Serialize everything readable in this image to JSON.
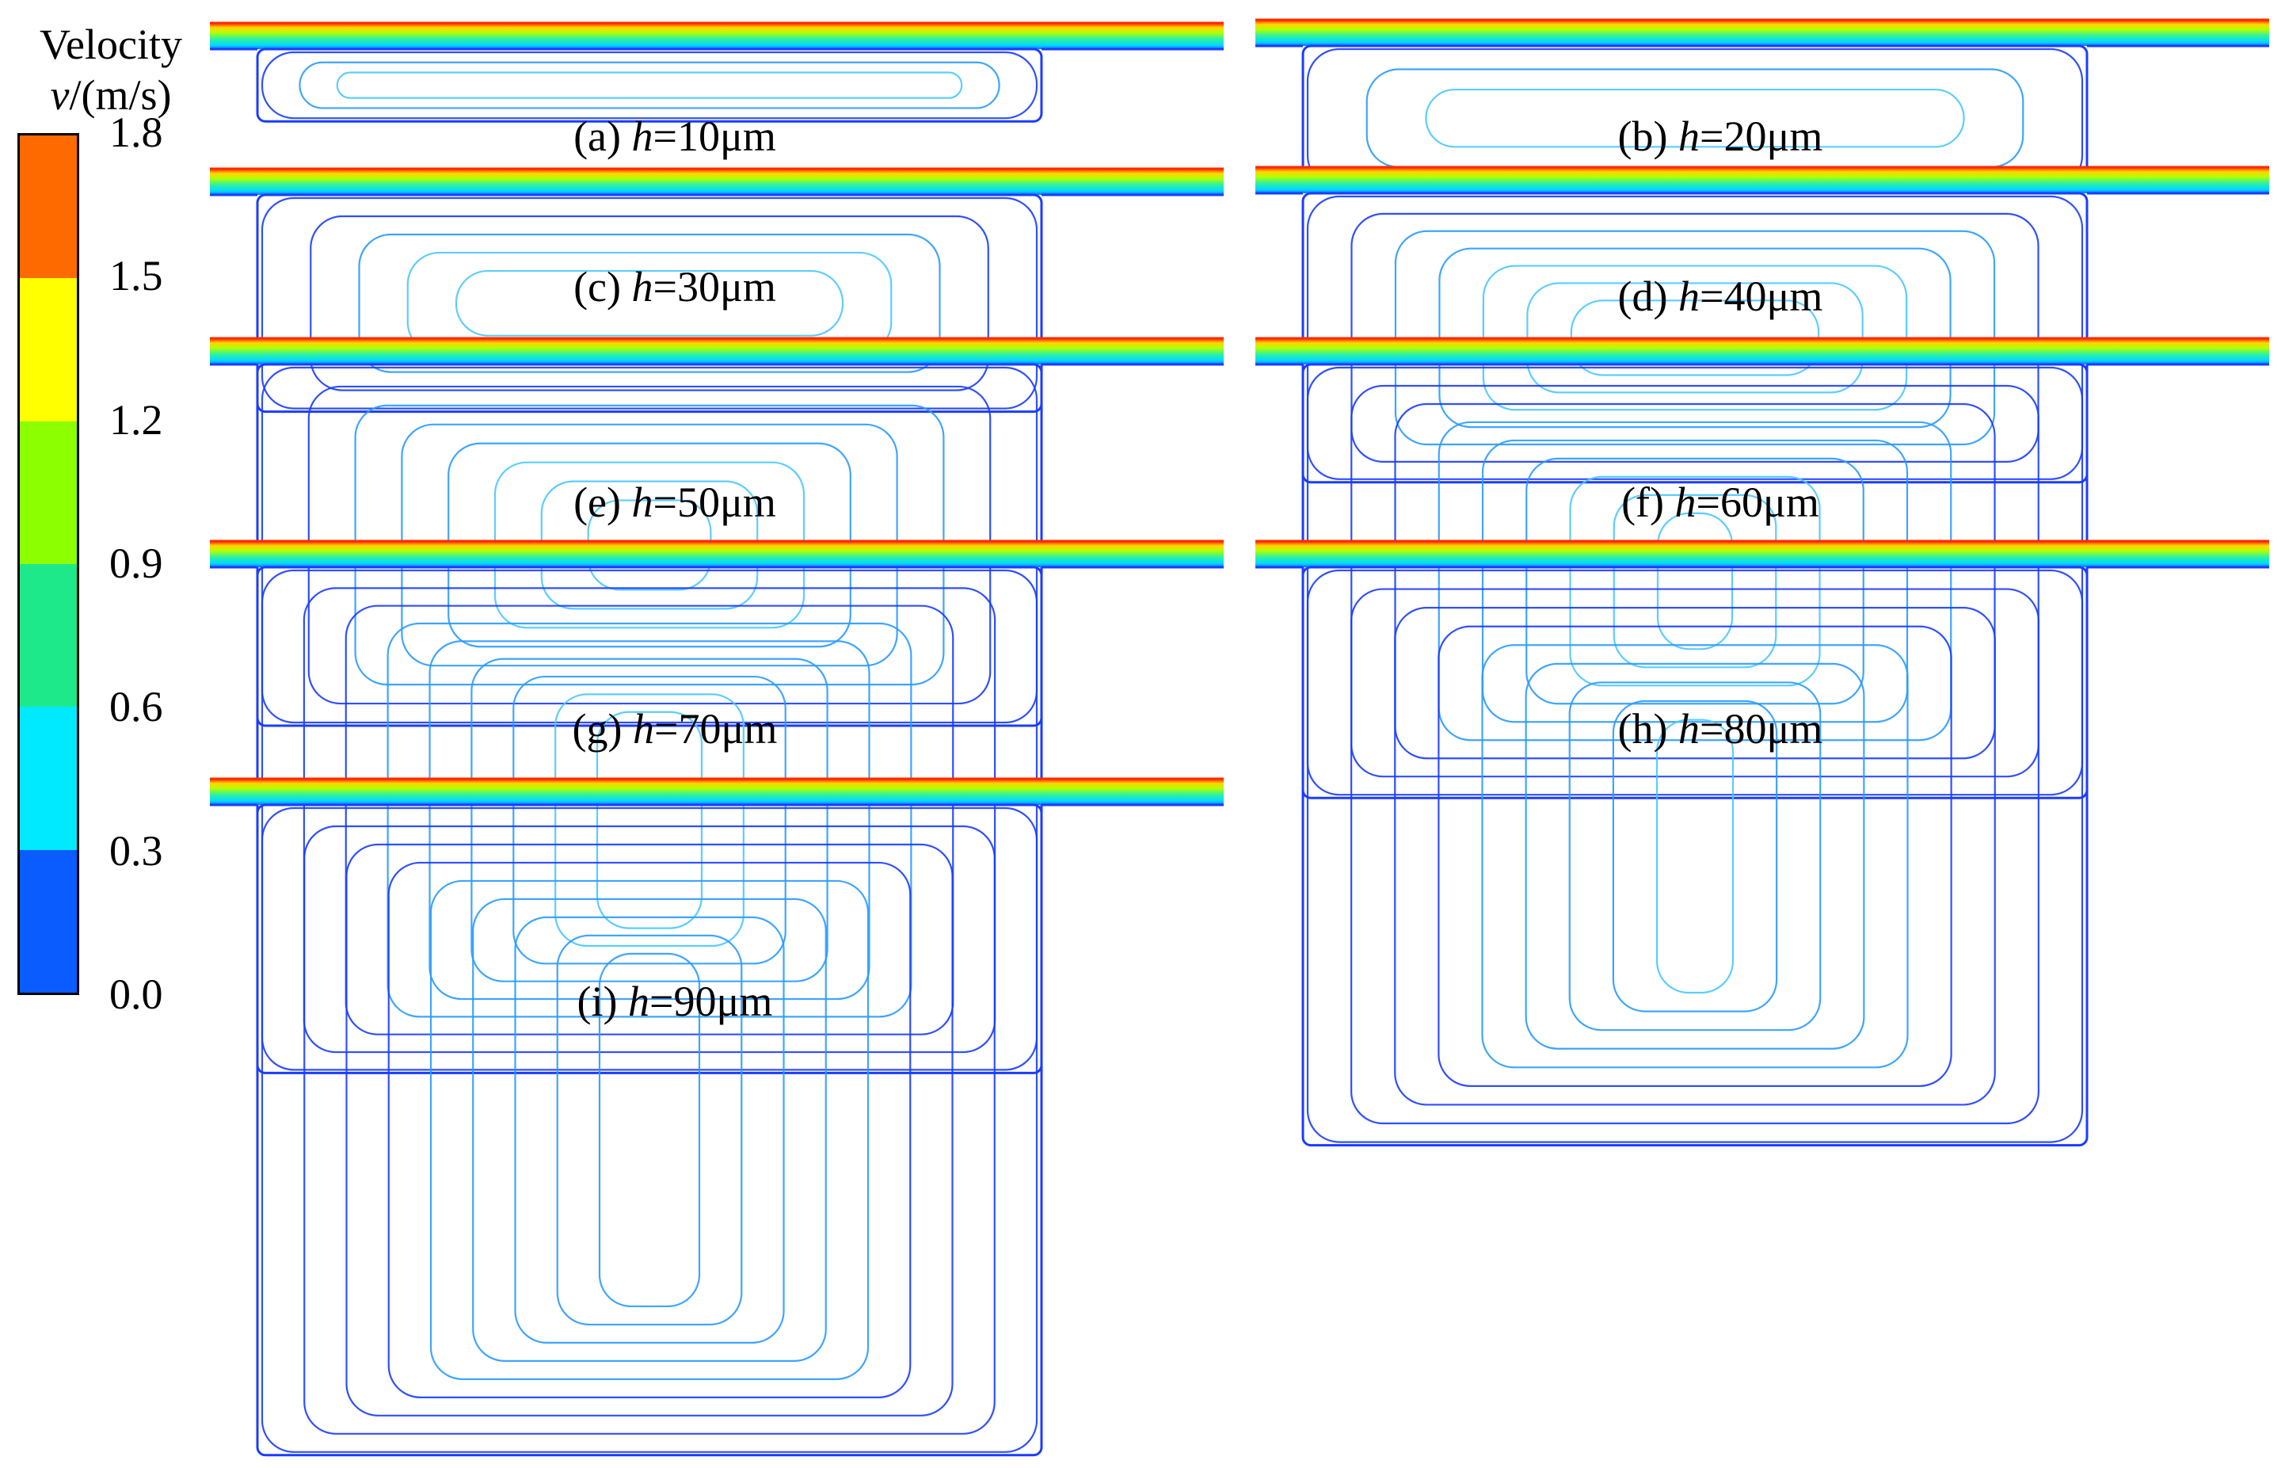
{
  "legend": {
    "title_line1": "Velocity",
    "title_line2_var": "v",
    "title_line2_unit": "/(m/s)",
    "ticks": [
      "1.8",
      "1.5",
      "1.2",
      "0.9",
      "0.6",
      "0.3",
      "0.0"
    ],
    "bands": [
      "#ff6a00",
      "#ffff00",
      "#8cff00",
      "#1de98b",
      "#00eaff",
      "#0a5cff"
    ]
  },
  "panels": [
    {
      "id": "a",
      "prefix": "(a) ",
      "var": "h",
      "rest": "=10μm",
      "depth_um": 10
    },
    {
      "id": "b",
      "prefix": "(b) ",
      "var": "h",
      "rest": "=20μm",
      "depth_um": 20
    },
    {
      "id": "c",
      "prefix": "(c) ",
      "var": "h",
      "rest": "=30μm",
      "depth_um": 30
    },
    {
      "id": "d",
      "prefix": "(d) ",
      "var": "h",
      "rest": "=40μm",
      "depth_um": 40
    },
    {
      "id": "e",
      "prefix": "(e) ",
      "var": "h",
      "rest": "=50μm",
      "depth_um": 50
    },
    {
      "id": "f",
      "prefix": "(f) ",
      "var": "h",
      "rest": "=60μm",
      "depth_um": 60
    },
    {
      "id": "g",
      "prefix": "(g) ",
      "var": "h",
      "rest": "=70μm",
      "depth_um": 70
    },
    {
      "id": "h",
      "prefix": "(h) ",
      "var": "h",
      "rest": "=80μm",
      "depth_um": 80
    },
    {
      "id": "i",
      "prefix": "(i) ",
      "var": "h",
      "rest": "=90μm",
      "depth_um": 90
    }
  ]
}
